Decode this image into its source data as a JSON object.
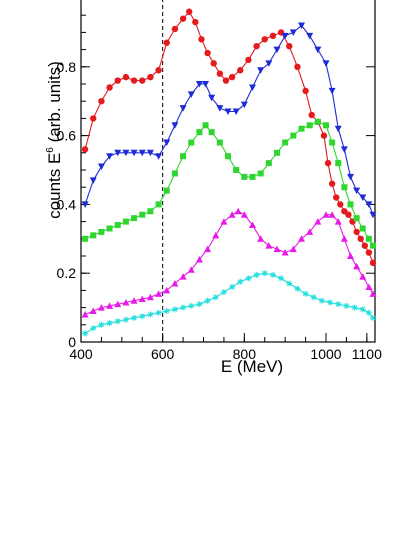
{
  "chart_data": {
    "type": "scatter",
    "title": "",
    "xlabel": "E   (MeV)",
    "ylabel_main": "counts E",
    "ylabel_sup": "6",
    "ylabel_tail": " (arb. units)",
    "xlim": [
      400,
      1120
    ],
    "ylim": [
      0,
      1.0
    ],
    "xticks": [
      400,
      600,
      800,
      1000,
      1100
    ],
    "yticks": [
      0,
      0.2,
      0.4,
      0.6,
      0.8
    ],
    "ytick_labels": [
      "0",
      "0.2",
      "0.4",
      "0.6",
      "0.8"
    ],
    "grid": false,
    "legend": "none",
    "vline": {
      "x": 600,
      "style": "dashed"
    },
    "series": [
      {
        "color": "#e41a1c",
        "marker": "circle",
        "points": [
          [
            410,
            0.56
          ],
          [
            430,
            0.65
          ],
          [
            450,
            0.7
          ],
          [
            470,
            0.74
          ],
          [
            490,
            0.76
          ],
          [
            510,
            0.77
          ],
          [
            530,
            0.76
          ],
          [
            550,
            0.76
          ],
          [
            570,
            0.77
          ],
          [
            590,
            0.79
          ],
          [
            610,
            0.87
          ],
          [
            630,
            0.91
          ],
          [
            650,
            0.94
          ],
          [
            665,
            0.96
          ],
          [
            680,
            0.93
          ],
          [
            695,
            0.88
          ],
          [
            710,
            0.84
          ],
          [
            725,
            0.81
          ],
          [
            740,
            0.78
          ],
          [
            755,
            0.76
          ],
          [
            770,
            0.77
          ],
          [
            790,
            0.79
          ],
          [
            810,
            0.82
          ],
          [
            830,
            0.86
          ],
          [
            850,
            0.88
          ],
          [
            870,
            0.89
          ],
          [
            890,
            0.9
          ],
          [
            910,
            0.86
          ],
          [
            930,
            0.8
          ],
          [
            950,
            0.73
          ],
          [
            965,
            0.66
          ],
          [
            980,
            0.64
          ],
          [
            995,
            0.6
          ],
          [
            1005,
            0.52
          ],
          [
            1015,
            0.46
          ],
          [
            1025,
            0.42
          ],
          [
            1035,
            0.4
          ],
          [
            1045,
            0.38
          ],
          [
            1055,
            0.37
          ],
          [
            1065,
            0.35
          ],
          [
            1075,
            0.32
          ],
          [
            1085,
            0.3
          ],
          [
            1095,
            0.28
          ],
          [
            1105,
            0.26
          ],
          [
            1115,
            0.23
          ]
        ]
      },
      {
        "color": "#1f2bd6",
        "marker": "triangle-down",
        "points": [
          [
            410,
            0.4
          ],
          [
            430,
            0.47
          ],
          [
            450,
            0.51
          ],
          [
            470,
            0.54
          ],
          [
            490,
            0.55
          ],
          [
            510,
            0.55
          ],
          [
            530,
            0.55
          ],
          [
            550,
            0.55
          ],
          [
            570,
            0.55
          ],
          [
            590,
            0.54
          ],
          [
            610,
            0.58
          ],
          [
            630,
            0.63
          ],
          [
            650,
            0.68
          ],
          [
            670,
            0.72
          ],
          [
            690,
            0.75
          ],
          [
            705,
            0.75
          ],
          [
            720,
            0.71
          ],
          [
            740,
            0.68
          ],
          [
            760,
            0.67
          ],
          [
            780,
            0.67
          ],
          [
            800,
            0.69
          ],
          [
            820,
            0.74
          ],
          [
            840,
            0.79
          ],
          [
            860,
            0.81
          ],
          [
            880,
            0.85
          ],
          [
            900,
            0.89
          ],
          [
            920,
            0.9
          ],
          [
            940,
            0.92
          ],
          [
            960,
            0.89
          ],
          [
            980,
            0.85
          ],
          [
            1000,
            0.81
          ],
          [
            1015,
            0.73
          ],
          [
            1030,
            0.62
          ],
          [
            1045,
            0.56
          ],
          [
            1060,
            0.48
          ],
          [
            1075,
            0.44
          ],
          [
            1090,
            0.42
          ],
          [
            1105,
            0.4
          ],
          [
            1115,
            0.37
          ]
        ]
      },
      {
        "color": "#2fd62f",
        "marker": "square",
        "points": [
          [
            410,
            0.3
          ],
          [
            430,
            0.31
          ],
          [
            450,
            0.32
          ],
          [
            470,
            0.33
          ],
          [
            490,
            0.34
          ],
          [
            510,
            0.35
          ],
          [
            530,
            0.36
          ],
          [
            550,
            0.37
          ],
          [
            570,
            0.38
          ],
          [
            590,
            0.4
          ],
          [
            610,
            0.44
          ],
          [
            630,
            0.49
          ],
          [
            650,
            0.54
          ],
          [
            670,
            0.58
          ],
          [
            690,
            0.61
          ],
          [
            705,
            0.63
          ],
          [
            720,
            0.61
          ],
          [
            740,
            0.58
          ],
          [
            760,
            0.54
          ],
          [
            780,
            0.5
          ],
          [
            800,
            0.48
          ],
          [
            820,
            0.48
          ],
          [
            840,
            0.49
          ],
          [
            860,
            0.52
          ],
          [
            880,
            0.55
          ],
          [
            900,
            0.58
          ],
          [
            920,
            0.6
          ],
          [
            940,
            0.62
          ],
          [
            960,
            0.63
          ],
          [
            980,
            0.64
          ],
          [
            1000,
            0.63
          ],
          [
            1015,
            0.58
          ],
          [
            1030,
            0.52
          ],
          [
            1045,
            0.45
          ],
          [
            1060,
            0.4
          ],
          [
            1075,
            0.36
          ],
          [
            1090,
            0.33
          ],
          [
            1105,
            0.3
          ],
          [
            1115,
            0.28
          ]
        ]
      },
      {
        "color": "#e81ae8",
        "marker": "triangle-up",
        "points": [
          [
            410,
            0.08
          ],
          [
            430,
            0.09
          ],
          [
            450,
            0.1
          ],
          [
            470,
            0.105
          ],
          [
            490,
            0.11
          ],
          [
            510,
            0.115
          ],
          [
            530,
            0.12
          ],
          [
            550,
            0.125
          ],
          [
            570,
            0.13
          ],
          [
            590,
            0.14
          ],
          [
            610,
            0.15
          ],
          [
            630,
            0.17
          ],
          [
            650,
            0.19
          ],
          [
            670,
            0.21
          ],
          [
            690,
            0.24
          ],
          [
            710,
            0.27
          ],
          [
            730,
            0.31
          ],
          [
            750,
            0.35
          ],
          [
            770,
            0.37
          ],
          [
            785,
            0.38
          ],
          [
            800,
            0.37
          ],
          [
            820,
            0.34
          ],
          [
            840,
            0.3
          ],
          [
            860,
            0.28
          ],
          [
            880,
            0.27
          ],
          [
            900,
            0.26
          ],
          [
            920,
            0.27
          ],
          [
            940,
            0.3
          ],
          [
            960,
            0.32
          ],
          [
            980,
            0.35
          ],
          [
            1000,
            0.37
          ],
          [
            1015,
            0.37
          ],
          [
            1030,
            0.35
          ],
          [
            1045,
            0.3
          ],
          [
            1060,
            0.25
          ],
          [
            1075,
            0.22
          ],
          [
            1090,
            0.19
          ],
          [
            1105,
            0.16
          ],
          [
            1115,
            0.14
          ]
        ]
      },
      {
        "color": "#22dede",
        "marker": "star",
        "points": [
          [
            410,
            0.025
          ],
          [
            430,
            0.04
          ],
          [
            450,
            0.05
          ],
          [
            470,
            0.055
          ],
          [
            490,
            0.06
          ],
          [
            510,
            0.065
          ],
          [
            530,
            0.07
          ],
          [
            550,
            0.075
          ],
          [
            570,
            0.08
          ],
          [
            590,
            0.085
          ],
          [
            610,
            0.09
          ],
          [
            630,
            0.095
          ],
          [
            650,
            0.1
          ],
          [
            670,
            0.105
          ],
          [
            690,
            0.11
          ],
          [
            710,
            0.12
          ],
          [
            730,
            0.13
          ],
          [
            750,
            0.145
          ],
          [
            770,
            0.16
          ],
          [
            790,
            0.175
          ],
          [
            810,
            0.185
          ],
          [
            830,
            0.195
          ],
          [
            850,
            0.2
          ],
          [
            870,
            0.195
          ],
          [
            890,
            0.185
          ],
          [
            910,
            0.17
          ],
          [
            930,
            0.155
          ],
          [
            950,
            0.14
          ],
          [
            970,
            0.13
          ],
          [
            990,
            0.12
          ],
          [
            1010,
            0.115
          ],
          [
            1030,
            0.11
          ],
          [
            1050,
            0.105
          ],
          [
            1070,
            0.1
          ],
          [
            1090,
            0.095
          ],
          [
            1105,
            0.085
          ],
          [
            1115,
            0.07
          ]
        ]
      }
    ]
  }
}
